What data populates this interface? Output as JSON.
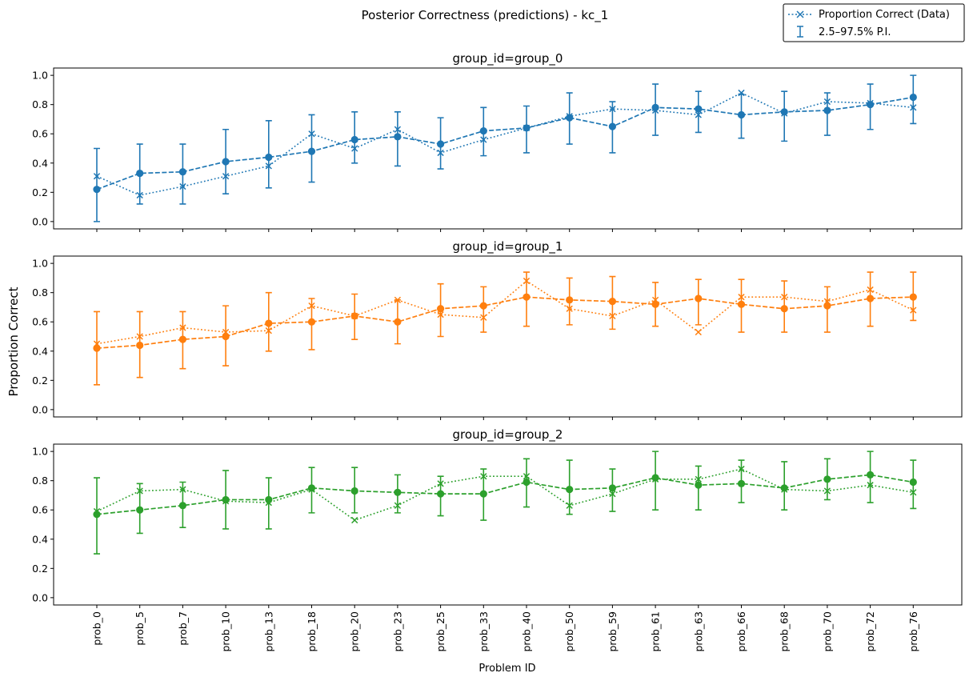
{
  "chart_data": {
    "type": "line",
    "title": "Posterior Correctness (predictions) - kc_1",
    "xlabel": "Problem ID",
    "ylabel": "Proportion Correct",
    "ylim": [
      -0.05,
      1.05
    ],
    "yticks": [
      "0.0",
      "0.2",
      "0.4",
      "0.6",
      "0.8",
      "1.0"
    ],
    "categories": [
      "prob_0",
      "prob_5",
      "prob_7",
      "prob_10",
      "prob_13",
      "prob_18",
      "prob_20",
      "prob_23",
      "prob_25",
      "prob_33",
      "prob_40",
      "prob_50",
      "prob_59",
      "prob_61",
      "prob_63",
      "prob_66",
      "prob_68",
      "prob_70",
      "prob_72",
      "prob_76"
    ],
    "legend": {
      "position": "top-right",
      "entries": [
        "Proportion Correct (Data)",
        "2.5–97.5% P.I."
      ]
    },
    "panels": [
      {
        "title": "group_id=group_0",
        "color": "#1f77b4",
        "predicted": [
          0.22,
          0.33,
          0.34,
          0.41,
          0.44,
          0.48,
          0.56,
          0.58,
          0.53,
          0.62,
          0.64,
          0.71,
          0.65,
          0.78,
          0.77,
          0.73,
          0.75,
          0.76,
          0.8,
          0.85
        ],
        "lower": [
          0.0,
          0.12,
          0.12,
          0.19,
          0.23,
          0.27,
          0.4,
          0.38,
          0.36,
          0.45,
          0.47,
          0.53,
          0.47,
          0.59,
          0.61,
          0.57,
          0.55,
          0.59,
          0.63,
          0.67
        ],
        "upper": [
          0.5,
          0.53,
          0.53,
          0.63,
          0.69,
          0.73,
          0.75,
          0.75,
          0.71,
          0.78,
          0.79,
          0.88,
          0.82,
          0.94,
          0.89,
          0.87,
          0.89,
          0.88,
          0.94,
          1.0
        ],
        "observed": [
          0.31,
          0.18,
          0.24,
          0.31,
          0.38,
          0.6,
          0.5,
          0.63,
          0.47,
          0.56,
          0.64,
          0.72,
          0.77,
          0.76,
          0.73,
          0.88,
          0.74,
          0.82,
          0.81,
          0.78
        ]
      },
      {
        "title": "group_id=group_1",
        "color": "#ff7f0e",
        "predicted": [
          0.42,
          0.44,
          0.48,
          0.5,
          0.59,
          0.6,
          0.64,
          0.6,
          0.69,
          0.71,
          0.77,
          0.75,
          0.74,
          0.72,
          0.76,
          0.72,
          0.69,
          0.71,
          0.76,
          0.77
        ],
        "lower": [
          0.17,
          0.22,
          0.28,
          0.3,
          0.4,
          0.41,
          0.48,
          0.45,
          0.5,
          0.53,
          0.57,
          0.58,
          0.55,
          0.57,
          0.58,
          0.53,
          0.53,
          0.53,
          0.57,
          0.61
        ],
        "upper": [
          0.67,
          0.67,
          0.67,
          0.71,
          0.8,
          0.76,
          0.79,
          0.75,
          0.86,
          0.84,
          0.94,
          0.9,
          0.91,
          0.87,
          0.89,
          0.89,
          0.88,
          0.84,
          0.94,
          0.94
        ],
        "observed": [
          0.45,
          0.5,
          0.56,
          0.53,
          0.54,
          0.71,
          0.64,
          0.75,
          0.65,
          0.63,
          0.88,
          0.69,
          0.64,
          0.75,
          0.53,
          0.77,
          0.77,
          0.74,
          0.82,
          0.68
        ]
      },
      {
        "title": "group_id=group_2",
        "color": "#2ca02c",
        "predicted": [
          0.57,
          0.6,
          0.63,
          0.67,
          0.67,
          0.75,
          0.73,
          0.72,
          0.71,
          0.71,
          0.79,
          0.74,
          0.75,
          0.82,
          0.77,
          0.78,
          0.75,
          0.81,
          0.84,
          0.79
        ],
        "lower": [
          0.3,
          0.44,
          0.48,
          0.47,
          0.47,
          0.58,
          0.58,
          0.58,
          0.56,
          0.53,
          0.62,
          0.57,
          0.59,
          0.6,
          0.6,
          0.65,
          0.6,
          0.67,
          0.65,
          0.61
        ],
        "upper": [
          0.82,
          0.78,
          0.79,
          0.87,
          0.82,
          0.89,
          0.89,
          0.84,
          0.83,
          0.88,
          0.95,
          0.94,
          0.88,
          1.0,
          0.9,
          0.94,
          0.93,
          0.95,
          1.0,
          0.94
        ],
        "observed": [
          0.59,
          0.73,
          0.74,
          0.66,
          0.65,
          0.74,
          0.53,
          0.63,
          0.78,
          0.83,
          0.83,
          0.63,
          0.71,
          0.81,
          0.81,
          0.88,
          0.74,
          0.73,
          0.77,
          0.72
        ]
      }
    ]
  }
}
